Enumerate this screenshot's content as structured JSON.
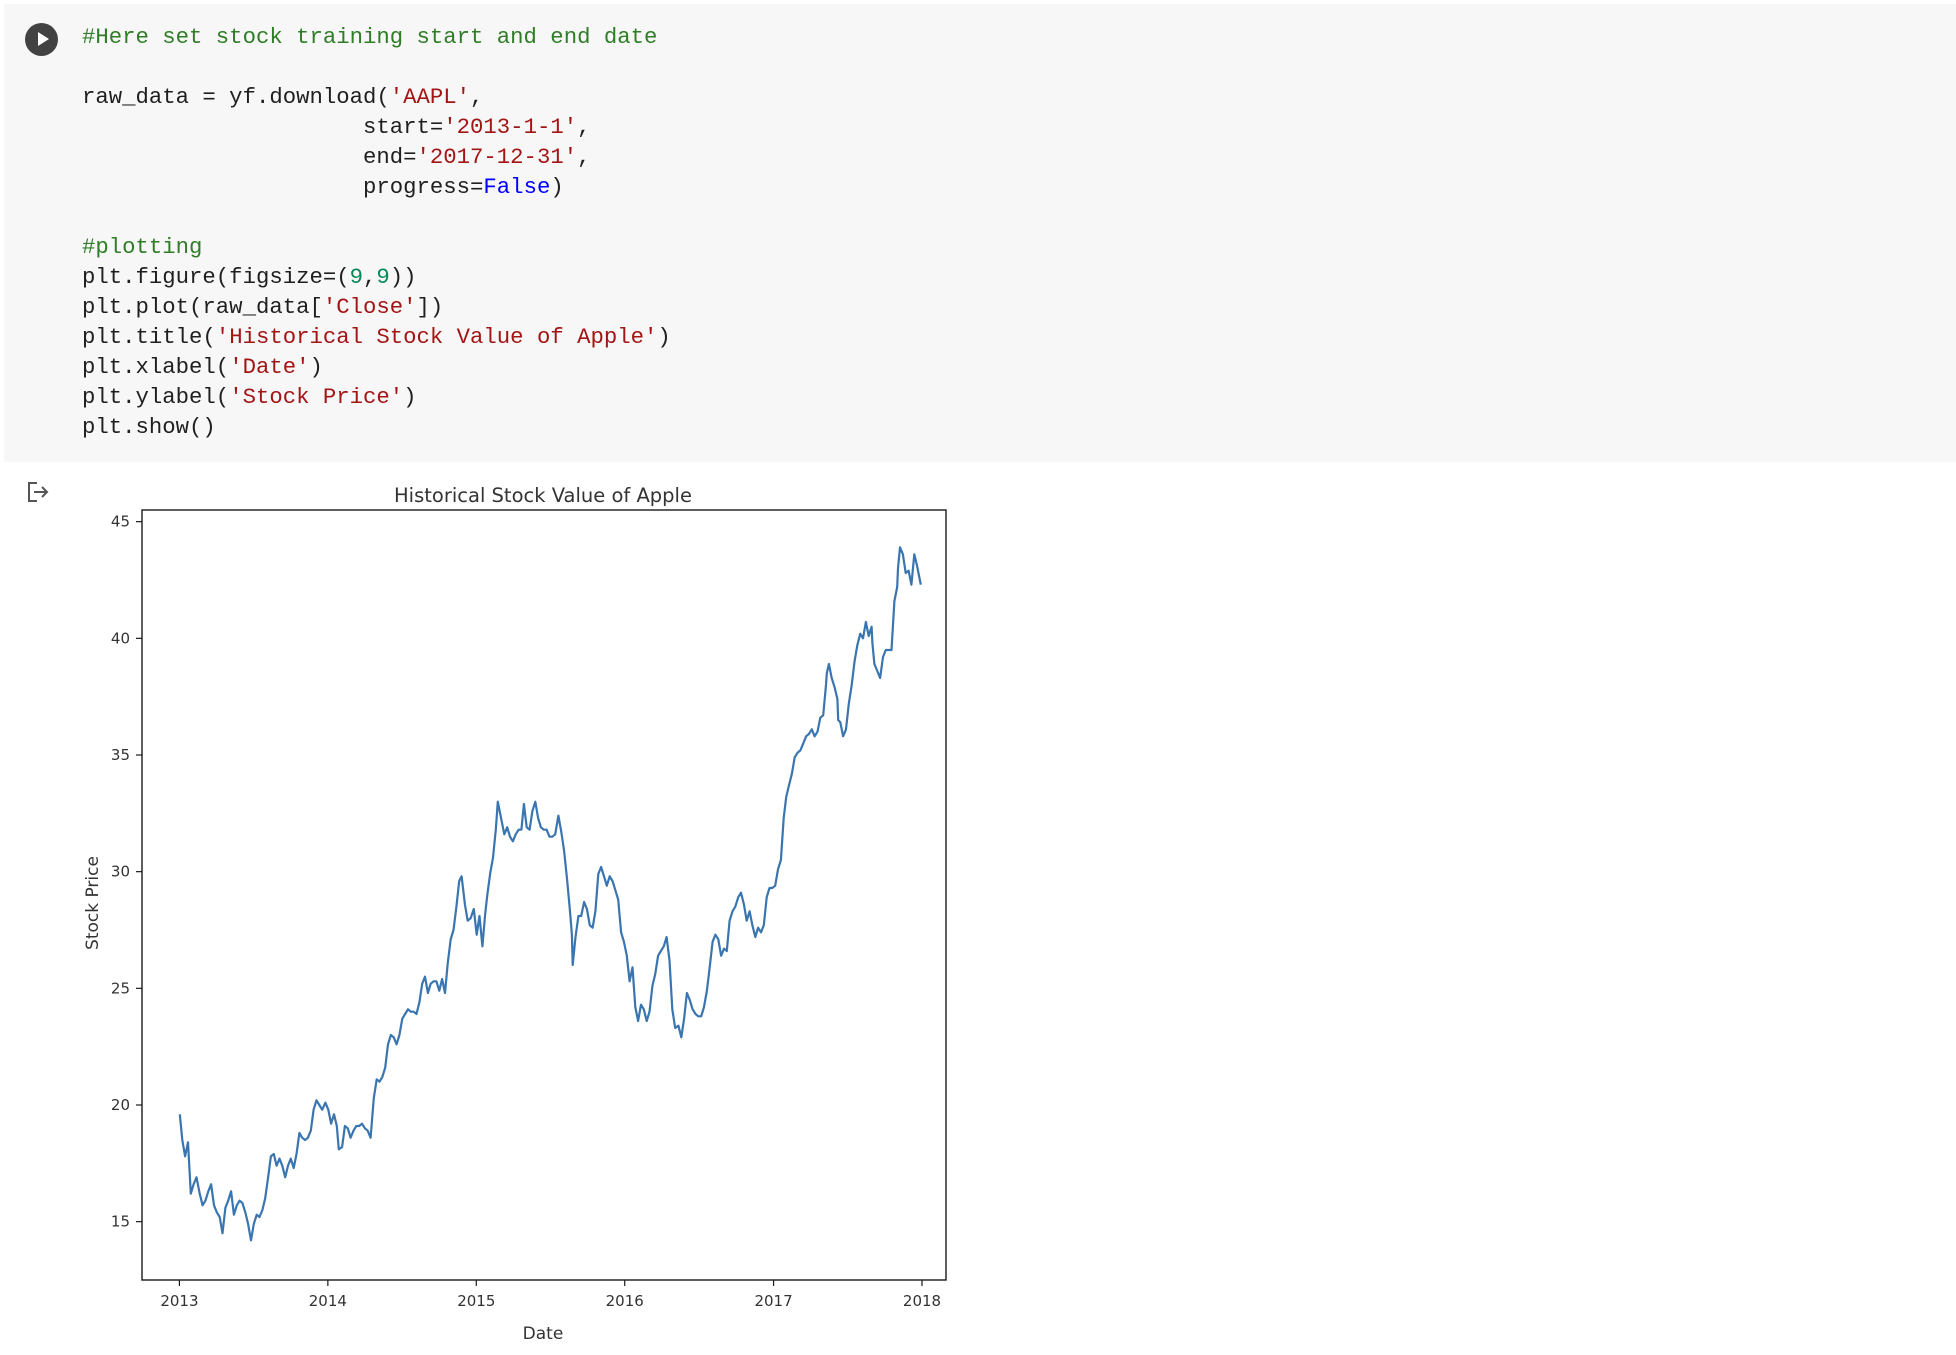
{
  "cell": {
    "run_button_icon": "play-icon",
    "output_icon": "output-redirect-icon",
    "code_lines": [
      [
        {
          "t": "comment",
          "s": "#Here set stock training start and end date"
        }
      ],
      [],
      [
        {
          "t": "plain",
          "s": "raw_data = yf.download("
        },
        {
          "t": "string",
          "s": "'AAPL'"
        },
        {
          "t": "plain",
          "s": ","
        }
      ],
      [
        {
          "t": "plain",
          "s": "                     start="
        },
        {
          "t": "string",
          "s": "'2013-1-1'"
        },
        {
          "t": "plain",
          "s": ","
        }
      ],
      [
        {
          "t": "plain",
          "s": "                     end="
        },
        {
          "t": "string",
          "s": "'2017-12-31'"
        },
        {
          "t": "plain",
          "s": ","
        }
      ],
      [
        {
          "t": "plain",
          "s": "                     progress="
        },
        {
          "t": "keyword",
          "s": "False"
        },
        {
          "t": "plain",
          "s": ")"
        }
      ],
      [],
      [
        {
          "t": "comment",
          "s": "#plotting"
        }
      ],
      [
        {
          "t": "plain",
          "s": "plt.figure(figsize=("
        },
        {
          "t": "number",
          "s": "9"
        },
        {
          "t": "plain",
          "s": ","
        },
        {
          "t": "number",
          "s": "9"
        },
        {
          "t": "plain",
          "s": "))"
        }
      ],
      [
        {
          "t": "plain",
          "s": "plt.plot(raw_data["
        },
        {
          "t": "string",
          "s": "'Close'"
        },
        {
          "t": "plain",
          "s": "])"
        }
      ],
      [
        {
          "t": "plain",
          "s": "plt.title("
        },
        {
          "t": "string",
          "s": "'Historical Stock Value of Apple'"
        },
        {
          "t": "plain",
          "s": ")"
        }
      ],
      [
        {
          "t": "plain",
          "s": "plt.xlabel("
        },
        {
          "t": "string",
          "s": "'Date'"
        },
        {
          "t": "plain",
          "s": ")"
        }
      ],
      [
        {
          "t": "plain",
          "s": "plt.ylabel("
        },
        {
          "t": "string",
          "s": "'Stock Price'"
        },
        {
          "t": "plain",
          "s": ")"
        }
      ],
      [
        {
          "t": "plain",
          "s": "plt.show()"
        }
      ]
    ]
  },
  "chart_data": {
    "type": "line",
    "title": "Historical Stock Value of Apple",
    "xlabel": "Date",
    "ylabel": "Stock Price",
    "x_ticks": [
      2013,
      2014,
      2015,
      2016,
      2017,
      2018
    ],
    "y_ticks": [
      15,
      20,
      25,
      30,
      35,
      40,
      45
    ],
    "xlim": [
      "2012-10-01",
      "2018-03-01"
    ],
    "ylim": [
      12.5,
      45.5
    ],
    "grid": false,
    "line_color": "#3a75af",
    "series": [
      {
        "x": [
          "2013-01-02",
          "2013-01-08",
          "2013-01-15",
          "2013-01-22",
          "2013-01-29",
          "2013-02-05",
          "2013-02-12",
          "2013-02-20",
          "2013-02-27",
          "2013-03-06",
          "2013-03-13",
          "2013-03-20",
          "2013-03-27",
          "2013-04-03",
          "2013-04-10",
          "2013-04-17",
          "2013-04-24",
          "2013-05-01",
          "2013-05-08",
          "2013-05-15",
          "2013-05-22",
          "2013-05-29",
          "2013-06-05",
          "2013-06-12",
          "2013-06-19",
          "2013-06-26",
          "2013-07-03",
          "2013-07-10",
          "2013-07-17",
          "2013-07-24",
          "2013-07-31",
          "2013-08-07",
          "2013-08-14",
          "2013-08-21",
          "2013-08-28",
          "2013-09-04",
          "2013-09-11",
          "2013-09-18",
          "2013-09-25",
          "2013-10-02",
          "2013-10-09",
          "2013-10-16",
          "2013-10-23",
          "2013-10-30",
          "2013-11-06",
          "2013-11-13",
          "2013-11-20",
          "2013-11-27",
          "2013-12-04",
          "2013-12-11",
          "2013-12-18",
          "2013-12-26",
          "2014-01-02",
          "2014-01-09",
          "2014-01-16",
          "2014-01-23",
          "2014-01-28",
          "2014-02-05",
          "2014-02-12",
          "2014-02-19",
          "2014-02-26",
          "2014-03-05",
          "2014-03-12",
          "2014-03-19",
          "2014-03-26",
          "2014-04-02",
          "2014-04-09",
          "2014-04-16",
          "2014-04-24",
          "2014-05-01",
          "2014-05-08",
          "2014-05-15",
          "2014-05-22",
          "2014-05-29",
          "2014-06-05",
          "2014-06-12",
          "2014-06-19",
          "2014-06-26",
          "2014-07-03",
          "2014-07-10",
          "2014-07-17",
          "2014-07-24",
          "2014-07-31",
          "2014-08-07",
          "2014-08-14",
          "2014-08-21",
          "2014-08-28",
          "2014-09-04",
          "2014-09-11",
          "2014-09-18",
          "2014-09-25",
          "2014-10-02",
          "2014-10-09",
          "2014-10-16",
          "2014-10-23",
          "2014-10-30",
          "2014-11-06",
          "2014-11-13",
          "2014-11-20",
          "2014-11-26",
          "2014-12-04",
          "2014-12-11",
          "2014-12-18",
          "2014-12-26",
          "2015-01-02",
          "2015-01-09",
          "2015-01-16",
          "2015-01-23",
          "2015-01-28",
          "2015-02-04",
          "2015-02-11",
          "2015-02-18",
          "2015-02-23",
          "2015-03-04",
          "2015-03-11",
          "2015-03-18",
          "2015-03-25",
          "2015-04-01",
          "2015-04-08",
          "2015-04-15",
          "2015-04-22",
          "2015-04-28",
          "2015-05-05",
          "2015-05-12",
          "2015-05-19",
          "2015-05-26",
          "2015-06-02",
          "2015-06-09",
          "2015-06-16",
          "2015-06-23",
          "2015-06-30",
          "2015-07-07",
          "2015-07-14",
          "2015-07-20",
          "2015-07-22",
          "2015-07-29",
          "2015-08-05",
          "2015-08-12",
          "2015-08-19",
          "2015-08-24",
          "2015-08-26",
          "2015-09-02",
          "2015-09-09",
          "2015-09-16",
          "2015-09-23",
          "2015-09-30",
          "2015-10-07",
          "2015-10-14",
          "2015-10-21",
          "2015-10-28",
          "2015-11-04",
          "2015-11-11",
          "2015-11-18",
          "2015-11-25",
          "2015-12-02",
          "2015-12-09",
          "2015-12-16",
          "2015-12-23",
          "2015-12-30",
          "2016-01-06",
          "2016-01-13",
          "2016-01-20",
          "2016-01-27",
          "2016-02-03",
          "2016-02-10",
          "2016-02-17",
          "2016-02-24",
          "2016-03-02",
          "2016-03-09",
          "2016-03-16",
          "2016-03-23",
          "2016-03-30",
          "2016-04-06",
          "2016-04-13",
          "2016-04-20",
          "2016-04-27",
          "2016-05-04",
          "2016-05-12",
          "2016-05-19",
          "2016-05-26",
          "2016-06-02",
          "2016-06-09",
          "2016-06-16",
          "2016-06-23",
          "2016-06-30",
          "2016-07-07",
          "2016-07-14",
          "2016-07-21",
          "2016-07-28",
          "2016-08-04",
          "2016-08-11",
          "2016-08-18",
          "2016-08-25",
          "2016-09-01",
          "2016-09-08",
          "2016-09-15",
          "2016-09-22",
          "2016-09-29",
          "2016-10-06",
          "2016-10-13",
          "2016-10-20",
          "2016-10-27",
          "2016-11-03",
          "2016-11-10",
          "2016-11-17",
          "2016-11-24",
          "2016-12-01",
          "2016-12-08",
          "2016-12-15",
          "2016-12-22",
          "2016-12-29",
          "2017-01-05",
          "2017-01-12",
          "2017-01-19",
          "2017-01-26",
          "2017-02-01",
          "2017-02-08",
          "2017-02-15",
          "2017-02-22",
          "2017-03-01",
          "2017-03-08",
          "2017-03-15",
          "2017-03-22",
          "2017-03-29",
          "2017-04-05",
          "2017-04-12",
          "2017-04-19",
          "2017-04-26",
          "2017-05-03",
          "2017-05-10",
          "2017-05-12",
          "2017-05-17",
          "2017-05-24",
          "2017-05-31",
          "2017-06-07",
          "2017-06-09",
          "2017-06-14",
          "2017-06-21",
          "2017-06-28",
          "2017-07-05",
          "2017-07-12",
          "2017-07-19",
          "2017-07-26",
          "2017-08-02",
          "2017-08-09",
          "2017-08-16",
          "2017-08-23",
          "2017-08-30",
          "2017-09-01",
          "2017-09-06",
          "2017-09-13",
          "2017-09-20",
          "2017-09-27",
          "2017-10-04",
          "2017-10-11",
          "2017-10-18",
          "2017-10-25",
          "2017-11-01",
          "2017-11-03",
          "2017-11-08",
          "2017-11-15",
          "2017-11-22",
          "2017-11-29",
          "2017-12-06",
          "2017-12-13",
          "2017-12-20",
          "2017-12-29"
        ],
        "y": [
          19.6,
          18.5,
          17.8,
          18.4,
          16.2,
          16.6,
          16.9,
          16.2,
          15.7,
          15.9,
          16.3,
          16.6,
          15.7,
          15.4,
          15.2,
          14.5,
          15.6,
          15.9,
          16.3,
          15.3,
          15.7,
          15.9,
          15.8,
          15.4,
          14.9,
          14.2,
          14.9,
          15.3,
          15.2,
          15.5,
          16.0,
          16.9,
          17.8,
          17.9,
          17.4,
          17.7,
          17.4,
          16.9,
          17.4,
          17.7,
          17.3,
          17.9,
          18.8,
          18.6,
          18.5,
          18.6,
          18.9,
          19.8,
          20.2,
          20.0,
          19.8,
          20.1,
          19.8,
          19.2,
          19.6,
          19.1,
          18.1,
          18.2,
          19.1,
          19.0,
          18.6,
          18.9,
          19.1,
          19.1,
          19.2,
          19.0,
          18.9,
          18.6,
          20.3,
          21.1,
          21.0,
          21.2,
          21.6,
          22.6,
          23.0,
          22.9,
          22.6,
          23.0,
          23.7,
          23.9,
          24.1,
          24.0,
          24.0,
          23.9,
          24.4,
          25.2,
          25.5,
          24.8,
          25.2,
          25.3,
          25.3,
          24.9,
          25.4,
          24.8,
          26.1,
          27.1,
          27.5,
          28.5,
          29.6,
          29.8,
          28.6,
          27.9,
          28.0,
          28.4,
          27.3,
          28.1,
          26.8,
          28.2,
          29.0,
          29.9,
          30.6,
          31.8,
          33.0,
          32.2,
          31.6,
          31.9,
          31.5,
          31.3,
          31.6,
          31.8,
          31.8,
          32.9,
          31.9,
          31.8,
          32.6,
          33.0,
          32.3,
          31.9,
          31.8,
          31.8,
          31.5,
          31.5,
          31.6,
          32.2,
          32.4,
          31.7,
          30.9,
          29.7,
          28.4,
          27.3,
          26.0,
          27.2,
          28.1,
          28.1,
          28.7,
          28.4,
          27.7,
          27.6,
          28.3,
          29.9,
          30.2,
          29.8,
          29.4,
          29.8,
          29.6,
          29.2,
          28.8,
          27.4,
          27.0,
          26.4,
          25.3,
          25.9,
          24.2,
          23.6,
          24.3,
          24.1,
          23.6,
          24.0,
          25.1,
          25.6,
          26.4,
          26.6,
          26.8,
          27.2,
          26.2,
          24.1,
          23.3,
          23.4,
          22.9,
          23.7,
          24.8,
          24.5,
          24.1,
          23.9,
          23.8,
          23.8,
          24.2,
          24.9,
          25.9,
          27.0,
          27.3,
          27.1,
          26.4,
          26.7,
          26.6,
          27.9,
          28.3,
          28.5,
          28.9,
          29.1,
          28.6,
          27.9,
          28.3,
          27.7,
          27.2,
          27.6,
          27.4,
          27.7,
          28.9,
          29.3,
          29.3,
          29.4,
          30.1,
          30.5,
          32.3,
          33.2,
          33.7,
          34.2,
          34.9,
          35.1,
          35.2,
          35.5,
          35.8,
          35.9,
          36.1,
          35.8,
          36.0,
          36.6,
          36.7,
          38.0,
          38.5,
          38.9,
          38.3,
          37.9,
          37.4,
          36.5,
          36.4,
          35.8,
          36.1,
          37.2,
          38.0,
          39.0,
          39.7,
          40.2,
          40.0,
          40.7,
          40.1,
          40.5,
          39.8,
          38.9,
          38.6,
          38.3,
          39.2,
          39.5,
          39.5,
          39.5,
          41.6,
          42.2,
          43.0,
          43.9,
          43.6,
          42.8,
          42.9,
          42.3,
          43.6,
          43.1,
          42.3
        ]
      }
    ]
  }
}
